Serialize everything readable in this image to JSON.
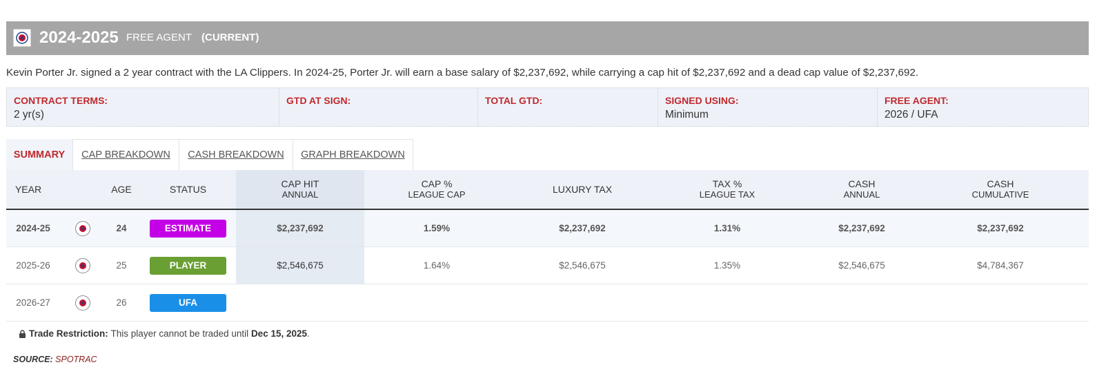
{
  "header": {
    "season": "2024-2025",
    "free_agent_label": "FREE AGENT",
    "current_label": "(CURRENT)",
    "logo_icon": "clippers-logo-icon"
  },
  "description": "Kevin Porter Jr. signed a 2 year contract with the LA Clippers. In 2024-25, Porter Jr. will earn a base salary of $2,237,692, while carrying a cap hit of $2,237,692 and a dead cap value of $2,237,692.",
  "terms": [
    {
      "label": "CONTRACT TERMS:",
      "value": "2 yr(s)"
    },
    {
      "label": "GTD AT SIGN:",
      "value": ""
    },
    {
      "label": "TOTAL GTD:",
      "value": ""
    },
    {
      "label": "SIGNED USING:",
      "value": "Minimum"
    },
    {
      "label": "FREE AGENT:",
      "value": "2026 / UFA"
    }
  ],
  "tabs": [
    {
      "label": "SUMMARY",
      "active": true
    },
    {
      "label": "CAP BREAKDOWN",
      "active": false
    },
    {
      "label": "CASH BREAKDOWN",
      "active": false
    },
    {
      "label": "GRAPH BREAKDOWN",
      "active": false
    }
  ],
  "table": {
    "headers": {
      "year": "YEAR",
      "age": "AGE",
      "status": "STATUS",
      "cap_hit": "CAP HIT",
      "cap_hit_sub": "ANNUAL",
      "cap_pct": "CAP %",
      "cap_pct_sub": "LEAGUE CAP",
      "luxury_tax": "LUXURY TAX",
      "tax_pct": "TAX %",
      "tax_pct_sub": "LEAGUE TAX",
      "cash": "CASH",
      "cash_sub": "ANNUAL",
      "cash_cum": "CASH",
      "cash_cum_sub": "CUMULATIVE"
    },
    "rows": [
      {
        "year": "2024-25",
        "age": "24",
        "status": "ESTIMATE",
        "cap_hit": "$2,237,692",
        "cap_pct": "1.59%",
        "luxury_tax": "$2,237,692",
        "tax_pct": "1.31%",
        "cash": "$2,237,692",
        "cash_cum": "$2,237,692"
      },
      {
        "year": "2025-26",
        "age": "25",
        "status": "PLAYER",
        "cap_hit": "$2,546,675",
        "cap_pct": "1.64%",
        "luxury_tax": "$2,546,675",
        "tax_pct": "1.35%",
        "cash": "$2,546,675",
        "cash_cum": "$4,784,367"
      },
      {
        "year": "2026-27",
        "age": "26",
        "status": "UFA",
        "cap_hit": "",
        "cap_pct": "",
        "luxury_tax": "",
        "tax_pct": "",
        "cash": "",
        "cash_cum": ""
      }
    ]
  },
  "status_colors": {
    "ESTIMATE": "#c400e6",
    "PLAYER": "#6aa033",
    "UFA": "#1a8fe8"
  },
  "accent_color": "#c0282d",
  "estimate_color": "#b316c7",
  "restriction": {
    "icon": "lock-icon",
    "label": "Trade Restriction:",
    "text": "This player cannot be traded until",
    "date": "Dec 15, 2025",
    "end": "."
  },
  "source": {
    "label": "SOURCE:",
    "name": "SPOTRAC"
  }
}
